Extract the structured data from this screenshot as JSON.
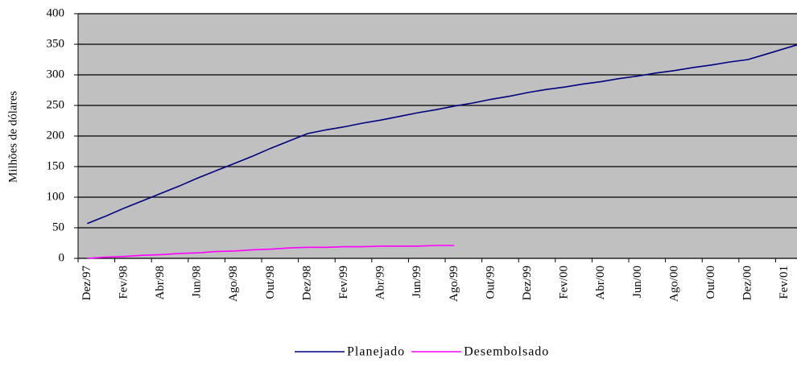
{
  "chart_data": {
    "type": "line",
    "y_label": "Milhões de dólares",
    "categories": [
      "Dez/97",
      null,
      "Fev/98",
      null,
      "Abr/98",
      null,
      "Jun/98",
      null,
      "Ago/98",
      null,
      "Out/98",
      null,
      "Dez/98",
      null,
      "Fev/99",
      null,
      "Abr/99",
      null,
      "Jun/99",
      null,
      "Ago/99",
      null,
      "Out/99",
      null,
      "Dez/99",
      null,
      "Fev/00",
      null,
      "Abr/00",
      null,
      "Jun/00",
      null,
      "Ago/00",
      null,
      "Out/00",
      null,
      "Dez/00",
      null,
      "Fev/01",
      null
    ],
    "series": [
      {
        "name": "Planejado",
        "color": "#000080",
        "values": [
          57,
          69,
          82,
          94,
          106,
          118,
          131,
          143,
          155,
          167,
          180,
          192,
          204,
          210,
          215,
          221,
          226,
          232,
          238,
          243,
          249,
          254,
          260,
          265,
          271,
          276,
          280,
          285,
          289,
          294,
          298,
          303,
          307,
          312,
          316,
          321,
          325,
          334,
          343,
          352
        ]
      },
      {
        "name": "Desembolsado",
        "color": "#ff00ff",
        "values": [
          0,
          2,
          3,
          5,
          6,
          8,
          9,
          11,
          12,
          14,
          15,
          17,
          18,
          18,
          19,
          19,
          20,
          20,
          20,
          21,
          21,
          null,
          null,
          null,
          null,
          null,
          null,
          null,
          null,
          null,
          null,
          null,
          null,
          null,
          null,
          null,
          null,
          null,
          null,
          null
        ]
      }
    ],
    "ylim": [
      0,
      400
    ],
    "yticks": [
      0,
      50,
      100,
      150,
      200,
      250,
      300,
      350,
      400
    ],
    "grid": true,
    "background": "#c0c0c0",
    "legend": "bottom"
  }
}
